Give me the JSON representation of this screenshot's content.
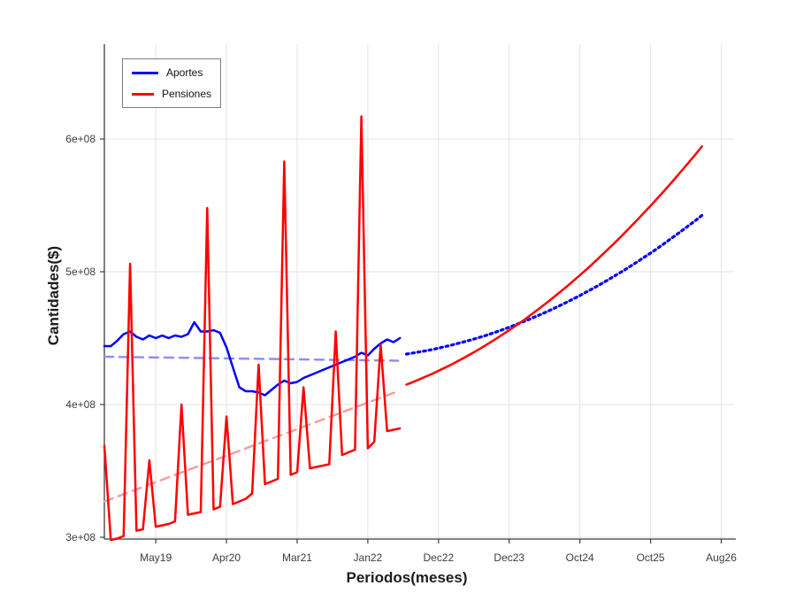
{
  "window": {
    "background": "#ffffff"
  },
  "legend": {
    "items": [
      {
        "label": "Aportes",
        "color": "#0000ff"
      },
      {
        "label": "Pensiones",
        "color": "#ff0000"
      }
    ]
  },
  "axes": {
    "x": {
      "label": "Periodos(meses)",
      "tick_labels": [
        "May19",
        "Apr20",
        "Mar21",
        "Jan22",
        "Dec22",
        "Dec23",
        "Oct24",
        "Oct25",
        "Aug26"
      ]
    },
    "y": {
      "label": "Cantidades($)",
      "tick_labels": [
        "3e+08",
        "4e+08",
        "5e+08",
        "6e+08"
      ]
    }
  },
  "chart_data": {
    "type": "line",
    "title": "",
    "xlabel": "Periodos(meses)",
    "ylabel": "Cantidades($)",
    "x_unit": "month index (monthly samples; ticks mark calendar months)",
    "value_unit": "dollars, values in units of 1e8 ($)",
    "xlim": [
      0,
      98
    ],
    "ylim": [
      2.98,
      6.72
    ],
    "grid": true,
    "legend_position": "top-left",
    "x_ticks": {
      "positions": [
        8,
        19,
        30,
        41,
        52,
        63,
        74,
        85,
        96
      ],
      "labels": [
        "May19",
        "Apr20",
        "Mar21",
        "Jan22",
        "Dec22",
        "Dec23",
        "Oct24",
        "Oct25",
        "Aug26"
      ]
    },
    "y_ticks": {
      "values": [
        3,
        4,
        5,
        6
      ],
      "labels": [
        "3e+08",
        "4e+08",
        "5e+08",
        "6e+08"
      ]
    },
    "series": [
      {
        "name": "Aportes",
        "segment": "trend",
        "color": "#8f8ff0",
        "style": "dashed",
        "draw_order": 1,
        "x": [
          0,
          45.7
        ],
        "values": [
          4.36,
          4.33
        ]
      },
      {
        "name": "Pensiones",
        "segment": "trend",
        "color": "#f89c9c",
        "style": "dashed",
        "draw_order": 2,
        "x": [
          0,
          45.7
        ],
        "values": [
          3.27,
          4.1
        ]
      },
      {
        "name": "Aportes",
        "segment": "historical",
        "color": "#0000ff",
        "style": "solid",
        "draw_order": 3,
        "x": [
          0,
          1,
          2,
          3,
          4,
          5,
          6,
          7,
          8,
          9,
          10,
          11,
          12,
          13,
          14,
          15,
          16,
          17,
          18,
          19,
          20,
          21,
          22,
          23,
          24,
          25,
          26,
          27,
          28,
          29,
          30,
          31,
          32,
          33,
          34,
          35,
          36,
          37,
          38,
          39,
          40,
          41,
          42,
          43,
          44,
          45,
          46
        ],
        "values": [
          4.44,
          4.44,
          4.48,
          4.53,
          4.55,
          4.51,
          4.49,
          4.52,
          4.5,
          4.52,
          4.5,
          4.52,
          4.51,
          4.53,
          4.62,
          4.55,
          4.55,
          4.56,
          4.54,
          4.43,
          4.28,
          4.13,
          4.1,
          4.1,
          4.09,
          4.07,
          4.11,
          4.15,
          4.18,
          4.16,
          4.17,
          4.2,
          4.22,
          4.24,
          4.26,
          4.28,
          4.3,
          4.32,
          4.34,
          4.36,
          4.39,
          4.37,
          4.42,
          4.46,
          4.49,
          4.47,
          4.5
        ]
      },
      {
        "name": "Aportes",
        "segment": "forecast",
        "color": "#0000ff",
        "style": "dotted",
        "draw_order": 4,
        "x": [
          47,
          48,
          49,
          50,
          51,
          52,
          53,
          54,
          55,
          56,
          57,
          58,
          59,
          60,
          61,
          62,
          63,
          64,
          65,
          66,
          67,
          68,
          69,
          70,
          71,
          72,
          73,
          74,
          75,
          76,
          77,
          78,
          79,
          80,
          81,
          82,
          83,
          84,
          85,
          86,
          87,
          88,
          89,
          90,
          91,
          92,
          93
        ],
        "values": [
          4.38,
          4.388,
          4.396,
          4.405,
          4.414,
          4.425,
          4.436,
          4.447,
          4.46,
          4.473,
          4.486,
          4.5,
          4.515,
          4.531,
          4.547,
          4.564,
          4.582,
          4.601,
          4.62,
          4.639,
          4.66,
          4.681,
          4.702,
          4.725,
          4.748,
          4.772,
          4.796,
          4.821,
          4.847,
          4.873,
          4.9,
          4.928,
          4.957,
          4.986,
          5.015,
          5.046,
          5.077,
          5.109,
          5.141,
          5.174,
          5.208,
          5.243,
          5.278,
          5.314,
          5.35,
          5.387,
          5.425
        ]
      },
      {
        "name": "Pensiones",
        "segment": "historical",
        "color": "#ff0000",
        "style": "solid",
        "draw_order": 5,
        "x": [
          0,
          1,
          2,
          3,
          4,
          5,
          6,
          7,
          8,
          9,
          10,
          11,
          12,
          13,
          14,
          15,
          16,
          17,
          18,
          19,
          20,
          21,
          22,
          23,
          24,
          25,
          26,
          27,
          28,
          29,
          30,
          31,
          32,
          33,
          34,
          35,
          36,
          37,
          38,
          39,
          40,
          41,
          42,
          43,
          44,
          45,
          46
        ],
        "values": [
          3.69,
          2.98,
          2.99,
          3.01,
          5.06,
          3.05,
          3.06,
          3.58,
          3.08,
          3.09,
          3.1,
          3.12,
          4.0,
          3.17,
          3.18,
          3.19,
          5.48,
          3.21,
          3.23,
          3.91,
          3.25,
          3.27,
          3.29,
          3.33,
          4.3,
          3.4,
          3.42,
          3.44,
          5.83,
          3.47,
          3.49,
          4.13,
          3.52,
          3.53,
          3.54,
          3.55,
          4.55,
          3.62,
          3.64,
          3.66,
          6.17,
          3.67,
          3.72,
          4.45,
          3.8,
          3.81,
          3.82
        ]
      },
      {
        "name": "Pensiones",
        "segment": "forecast",
        "color": "#ff0000",
        "style": "solid",
        "draw_order": 6,
        "x": [
          47,
          48,
          49,
          50,
          51,
          52,
          53,
          54,
          55,
          56,
          57,
          58,
          59,
          60,
          61,
          62,
          63,
          64,
          65,
          66,
          67,
          68,
          69,
          70,
          71,
          72,
          73,
          74,
          75,
          76,
          77,
          78,
          79,
          80,
          81,
          82,
          83,
          84,
          85,
          86,
          87,
          88,
          89,
          90,
          91,
          92,
          93
        ],
        "values": [
          4.15,
          4.169,
          4.189,
          4.21,
          4.231,
          4.254,
          4.277,
          4.301,
          4.327,
          4.353,
          4.38,
          4.407,
          4.436,
          4.466,
          4.496,
          4.528,
          4.56,
          4.593,
          4.627,
          4.662,
          4.698,
          4.735,
          4.773,
          4.811,
          4.851,
          4.891,
          4.932,
          4.974,
          5.017,
          5.061,
          5.106,
          5.152,
          5.198,
          5.246,
          5.294,
          5.344,
          5.394,
          5.445,
          5.497,
          5.55,
          5.603,
          5.658,
          5.713,
          5.77,
          5.827,
          5.885,
          5.944
        ]
      }
    ]
  }
}
